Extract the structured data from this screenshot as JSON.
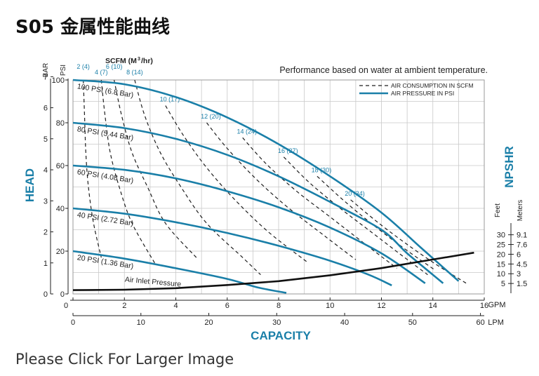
{
  "page": {
    "title": "S05 金属性能曲线",
    "link_text": "Please Click For Larger Image"
  },
  "chart_data": {
    "type": "line",
    "title": "",
    "subtitle": "Performance based on water at ambient temperature.",
    "x_axis_gpm": {
      "label": "GPM",
      "range": [
        0,
        16
      ],
      "ticks": [
        0,
        2,
        4,
        6,
        8,
        10,
        12,
        14,
        16
      ]
    },
    "x_axis_lpm": {
      "label": "LPM",
      "ticks": [
        0,
        10,
        20,
        30,
        40,
        50,
        60
      ],
      "lpm_per_gpm": 3.785
    },
    "xlabel": "CAPACITY",
    "ylabel": "HEAD",
    "y_axis_psi": {
      "label": "PSI",
      "range": [
        0,
        100
      ],
      "ticks": [
        0,
        20,
        40,
        60,
        80,
        100
      ]
    },
    "y_axis_bar": {
      "label": "BAR",
      "ticks": [
        0,
        1,
        2,
        3,
        4,
        5,
        6,
        7
      ],
      "psi_per_bar": 14.504
    },
    "npshr_axis": {
      "label": "NPSHR",
      "feet_label": "Feet",
      "meters_label": "Meters",
      "feet_ticks": [
        5,
        10,
        15,
        20,
        25,
        30
      ],
      "meters_ticks": [
        "1.5",
        "3",
        "4.5",
        "6",
        "7.6",
        "9.1"
      ],
      "feet_full_scale": 36
    },
    "legend": {
      "position": "top-right",
      "items": [
        {
          "label": "AIR CONSUMPTION IN SCFM",
          "style": "dashed",
          "color": "#1f1f1f"
        },
        {
          "label": "AIR PRESSURE IN PSI",
          "style": "solid",
          "color": "#1a7fa8"
        }
      ]
    },
    "scfm_header": {
      "text_prefix": "SCFM (M",
      "text_sup": "3",
      "text_suffix": "/hr)"
    },
    "pressure_series": [
      {
        "name": "100 PSI (6.8 Bar)",
        "points": [
          [
            0,
            100
          ],
          [
            2,
            98
          ],
          [
            4,
            92
          ],
          [
            6,
            82.5
          ],
          [
            8,
            70
          ],
          [
            10,
            55
          ],
          [
            12,
            38
          ],
          [
            13.5,
            22
          ],
          [
            15,
            6
          ]
        ]
      },
      {
        "name": "80 PSI (5.44 Bar)",
        "points": [
          [
            0,
            80
          ],
          [
            2,
            77.5
          ],
          [
            4,
            72.5
          ],
          [
            6,
            65
          ],
          [
            8,
            55
          ],
          [
            10,
            43
          ],
          [
            12,
            30
          ],
          [
            13,
            19
          ],
          [
            14.4,
            5
          ]
        ]
      },
      {
        "name": "60 PSI (4.08 Bar)",
        "points": [
          [
            0,
            60
          ],
          [
            2,
            58
          ],
          [
            4,
            54
          ],
          [
            6,
            48
          ],
          [
            8,
            40.5
          ],
          [
            10,
            31
          ],
          [
            12,
            19
          ],
          [
            13.7,
            5
          ]
        ]
      },
      {
        "name": "40 PSI (2.72 Bar)",
        "points": [
          [
            0,
            40
          ],
          [
            2,
            37.5
          ],
          [
            4,
            33.5
          ],
          [
            6,
            28.5
          ],
          [
            8,
            22.5
          ],
          [
            10,
            15.5
          ],
          [
            11.5,
            9
          ],
          [
            12.4,
            4
          ]
        ]
      },
      {
        "name": "20 PSI (1.36 Bar)",
        "points": [
          [
            0,
            20
          ],
          [
            2,
            16.5
          ],
          [
            4,
            12
          ],
          [
            6,
            7
          ],
          [
            7.2,
            3
          ],
          [
            8.3,
            0.5
          ]
        ]
      }
    ],
    "scfm_series": [
      {
        "label": "2 (4)",
        "points": [
          [
            0.4,
            100
          ],
          [
            0.45,
            83
          ],
          [
            0.5,
            66
          ],
          [
            0.6,
            50
          ],
          [
            0.8,
            33
          ],
          [
            1.1,
            17
          ]
        ]
      },
      {
        "label": "4 (7)",
        "points": [
          [
            1.1,
            100
          ],
          [
            1.25,
            83
          ],
          [
            1.45,
            66
          ],
          [
            1.8,
            50
          ],
          [
            2.3,
            33
          ],
          [
            3.2,
            14
          ]
        ]
      },
      {
        "name": "6 (10)",
        "label": "6 (10)",
        "points": [
          [
            1.6,
            100
          ],
          [
            1.9,
            83
          ],
          [
            2.3,
            66
          ],
          [
            2.9,
            50
          ],
          [
            3.6,
            33
          ],
          [
            4.8,
            17
          ]
        ]
      },
      {
        "label": "8 (14)",
        "points": [
          [
            2.4,
            100
          ],
          [
            2.8,
            83
          ],
          [
            3.4,
            66
          ],
          [
            4.2,
            50
          ],
          [
            5.2,
            33
          ],
          [
            6.6,
            17
          ],
          [
            7.3,
            9
          ]
        ]
      },
      {
        "label": "10 (17)",
        "points": [
          [
            3.6,
            88
          ],
          [
            4.3,
            74
          ],
          [
            5.2,
            59
          ],
          [
            6.3,
            44
          ],
          [
            7.6,
            29
          ],
          [
            9.1,
            15
          ]
        ]
      },
      {
        "label": "12 (20)",
        "points": [
          [
            5.2,
            80
          ],
          [
            6.0,
            68
          ],
          [
            7.1,
            54
          ],
          [
            8.3,
            41
          ],
          [
            9.8,
            27
          ],
          [
            11,
            16
          ]
        ]
      },
      {
        "label": "14 (24)",
        "points": [
          [
            6.6,
            73
          ],
          [
            7.5,
            61
          ],
          [
            8.7,
            48
          ],
          [
            10,
            36
          ],
          [
            11.4,
            23
          ],
          [
            12.6,
            12
          ]
        ]
      },
      {
        "label": "16 (27)",
        "points": [
          [
            8.2,
            64
          ],
          [
            9.2,
            52
          ],
          [
            10.4,
            40
          ],
          [
            11.6,
            29
          ],
          [
            12.9,
            17
          ],
          [
            13.8,
            9
          ]
        ]
      },
      {
        "label": "18 (30)",
        "points": [
          [
            9.5,
            55
          ],
          [
            10.5,
            44
          ],
          [
            11.6,
            33
          ],
          [
            12.8,
            22
          ],
          [
            14.1,
            11
          ]
        ]
      },
      {
        "label": "20 (34)",
        "points": [
          [
            10.8,
            44
          ],
          [
            11.8,
            34
          ],
          [
            12.9,
            24
          ],
          [
            14.1,
            14
          ],
          [
            15.3,
            5
          ]
        ]
      }
    ],
    "npshr_curve": {
      "label": "Air Inlet Pressure",
      "points_gpm_feet": [
        [
          0,
          1.6
        ],
        [
          2,
          1.8
        ],
        [
          4,
          2.6
        ],
        [
          6,
          4.2
        ],
        [
          8,
          6.2
        ],
        [
          10,
          9.2
        ],
        [
          12,
          12.9
        ],
        [
          14,
          17.3
        ],
        [
          15.6,
          20.8
        ]
      ]
    },
    "grid": true
  }
}
